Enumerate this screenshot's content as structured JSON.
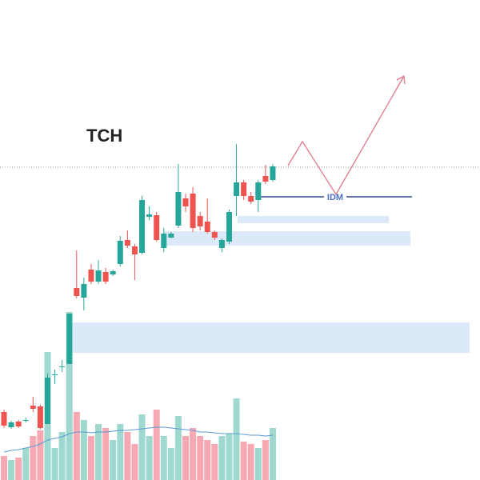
{
  "chart_data": {
    "type": "candlestick",
    "title": "TCH",
    "annotation": "IDM",
    "ylim": [
      0,
      600
    ],
    "volume_lim": [
      0,
      600
    ],
    "up_color": "#26a69a",
    "down_color": "#ef5350",
    "volume_up_color": "#9ed8cf",
    "volume_down_color": "#f6a8b3",
    "ma_color": "#5b9bd5",
    "zone_color": "#dce9f9",
    "projection_color": "#e07a8a",
    "level": 391,
    "idm_level": 354,
    "zones": [
      [
        197,
        159
      ],
      [
        311,
        293
      ],
      [
        330,
        321
      ]
    ],
    "open": [
      85,
      66,
      73,
      75,
      93,
      92,
      70,
      132,
      142,
      145,
      240,
      228,
      263,
      248,
      260,
      257,
      270,
      300,
      292,
      284,
      329,
      331,
      290,
      303,
      318,
      352,
      358,
      330,
      323,
      310,
      290,
      298,
      355,
      372,
      355,
      350,
      380,
      375
    ],
    "high": [
      88,
      74,
      75,
      78,
      104,
      94,
      133,
      138,
      150,
      208,
      287,
      253,
      270,
      275,
      265,
      263,
      305,
      312,
      295,
      355,
      342,
      335,
      315,
      310,
      395,
      358,
      366,
      335,
      352,
      312,
      302,
      338,
      420,
      375,
      360,
      375,
      394,
      395
    ],
    "low": [
      65,
      64,
      65,
      72,
      85,
      63,
      70,
      120,
      135,
      145,
      227,
      212,
      245,
      245,
      245,
      255,
      267,
      290,
      250,
      282,
      325,
      298,
      285,
      302,
      315,
      335,
      310,
      312,
      308,
      300,
      285,
      295,
      330,
      350,
      345,
      335,
      370,
      373
    ],
    "close": [
      68,
      72,
      67,
      75,
      89,
      65,
      128,
      132,
      142,
      208,
      230,
      245,
      248,
      262,
      248,
      261,
      299,
      293,
      282,
      350,
      332,
      300,
      308,
      308,
      360,
      342,
      315,
      317,
      310,
      303,
      300,
      335,
      372,
      355,
      348,
      372,
      373,
      392
    ],
    "volume": [
      30,
      25,
      28,
      40,
      55,
      62,
      160,
      40,
      60,
      210,
      85,
      75,
      55,
      70,
      65,
      50,
      70,
      60,
      45,
      82,
      55,
      88,
      55,
      40,
      80,
      55,
      65,
      55,
      50,
      45,
      55,
      58,
      102,
      48,
      45,
      40,
      50,
      65
    ],
    "ma": [
      35,
      37,
      38,
      40,
      42,
      45,
      50,
      52,
      54,
      58,
      60,
      60,
      59,
      60,
      60,
      61,
      62,
      62,
      63,
      64,
      65,
      66,
      66,
      65,
      64,
      63,
      62,
      60,
      60,
      59,
      58,
      58,
      58,
      57,
      56,
      56,
      55,
      56
    ]
  }
}
